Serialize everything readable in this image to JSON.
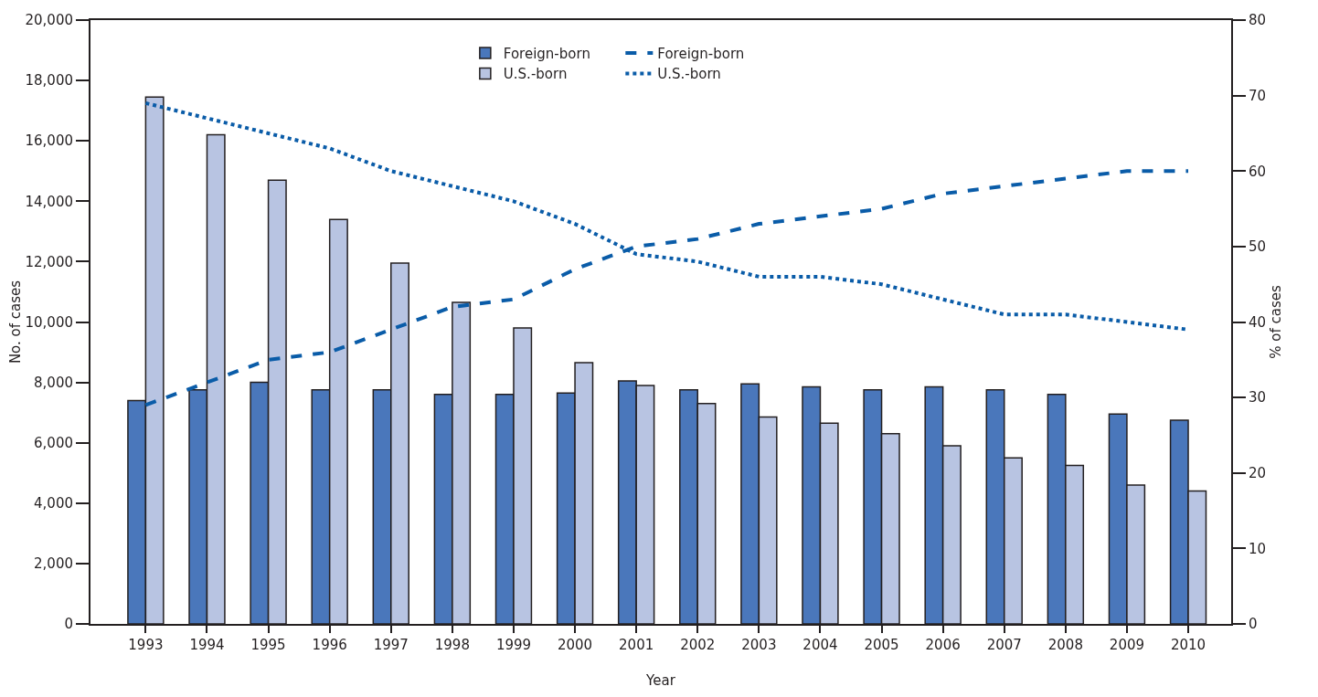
{
  "chart_data": {
    "type": "bar",
    "xlabel": "Year",
    "ylabel": "No. of cases",
    "y2label": "% of cases",
    "categories": [
      "1993",
      "1994",
      "1995",
      "1996",
      "1997",
      "1998",
      "1999",
      "2000",
      "2001",
      "2002",
      "2003",
      "2004",
      "2005",
      "2006",
      "2007",
      "2008",
      "2009",
      "2010"
    ],
    "series": [
      {
        "name": "Foreign-born",
        "color": "#4a77bb",
        "values": [
          7400,
          7750,
          8000,
          7750,
          7750,
          7600,
          7600,
          7650,
          8050,
          7750,
          7950,
          7850,
          7750,
          7850,
          7750,
          7600,
          6950,
          6750
        ]
      },
      {
        "name": "U.S.-born",
        "color": "#b8c4e2",
        "values": [
          17450,
          16200,
          14700,
          13400,
          11950,
          10650,
          9800,
          8650,
          7900,
          7300,
          6850,
          6650,
          6300,
          5900,
          5500,
          5250,
          4600,
          4400
        ]
      },
      {
        "name": "Foreign-born",
        "type": "line",
        "axis": "y2",
        "line_style": "dashed",
        "color": "#0a5ca8",
        "values": [
          29,
          32,
          35,
          36,
          39,
          42,
          43,
          47,
          50,
          51,
          53,
          54,
          55,
          57,
          58,
          59,
          60,
          60
        ]
      },
      {
        "name": "U.S.-born",
        "type": "line",
        "axis": "y2",
        "line_style": "dotted",
        "color": "#0a5ca8",
        "values": [
          69,
          67,
          65,
          63,
          60,
          58,
          56,
          53,
          49,
          48,
          46,
          46,
          45,
          43,
          41,
          41,
          40,
          39
        ]
      }
    ],
    "ylim": [
      0,
      20000
    ],
    "yticks": [
      0,
      {
        "value": 2000,
        "label": "2,000"
      },
      {
        "value": 4000,
        "label": "4,000"
      },
      {
        "value": 6000,
        "label": "6,000"
      },
      {
        "value": 8000,
        "label": "8,000"
      },
      {
        "value": 10000,
        "label": "10,000"
      },
      {
        "value": 12000,
        "label": "12,000"
      },
      {
        "value": 14000,
        "label": "14,000"
      },
      {
        "value": 16000,
        "label": "16,000"
      },
      {
        "value": 18000,
        "label": "18,000"
      },
      {
        "value": 20000,
        "label": "20,000"
      }
    ],
    "y2lim": [
      0,
      80
    ],
    "y2ticks": [
      0,
      10,
      20,
      30,
      40,
      50,
      60,
      70,
      80
    ],
    "grid": false,
    "legend": "top",
    "marker": "none"
  }
}
